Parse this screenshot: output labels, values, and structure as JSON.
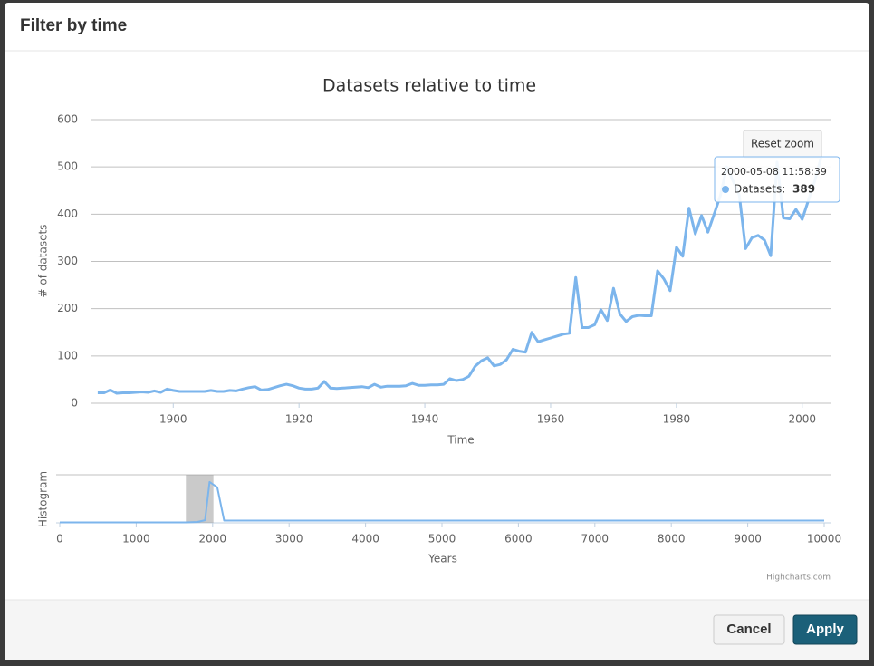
{
  "header": {
    "title": "Filter by time"
  },
  "chart_data": [
    {
      "type": "line",
      "title": "Datasets relative to time",
      "x_label": "Time",
      "y_label": "# of datasets",
      "x": [
        1888,
        1889,
        1890,
        1891,
        1892,
        1893,
        1894,
        1895,
        1896,
        1897,
        1898,
        1899,
        1900,
        1901,
        1902,
        1903,
        1904,
        1905,
        1906,
        1907,
        1908,
        1909,
        1910,
        1911,
        1912,
        1913,
        1914,
        1915,
        1916,
        1917,
        1918,
        1919,
        1920,
        1921,
        1922,
        1923,
        1924,
        1925,
        1926,
        1927,
        1928,
        1929,
        1930,
        1931,
        1932,
        1933,
        1934,
        1935,
        1936,
        1937,
        1938,
        1939,
        1940,
        1941,
        1942,
        1943,
        1944,
        1945,
        1946,
        1947,
        1948,
        1949,
        1950,
        1951,
        1952,
        1953,
        1954,
        1955,
        1956,
        1957,
        1958,
        1959,
        1960,
        1961,
        1962,
        1963,
        1964,
        1965,
        1966,
        1967,
        1968,
        1969,
        1970,
        1971,
        1972,
        1973,
        1974,
        1975,
        1976,
        1977,
        1978,
        1979,
        1980,
        1981,
        1982,
        1983,
        1984,
        1985,
        1986,
        1987,
        1988,
        1989,
        1990,
        1991,
        1992,
        1993,
        1994,
        1995,
        1996,
        1997,
        1998,
        1999,
        2000,
        2001,
        2002,
        2003
      ],
      "series": [
        {
          "name": "Datasets",
          "color": "#7cb5ec",
          "values": [
            22,
            22,
            28,
            21,
            22,
            22,
            23,
            24,
            23,
            26,
            23,
            30,
            27,
            25,
            25,
            25,
            25,
            25,
            27,
            25,
            25,
            27,
            26,
            30,
            33,
            35,
            28,
            29,
            33,
            37,
            40,
            37,
            32,
            30,
            30,
            32,
            46,
            32,
            31,
            32,
            33,
            34,
            35,
            33,
            40,
            34,
            36,
            36,
            36,
            37,
            42,
            38,
            38,
            39,
            39,
            40,
            52,
            48,
            50,
            57,
            78,
            90,
            96,
            79,
            82,
            92,
            114,
            110,
            108,
            150,
            130,
            134,
            138,
            142,
            146,
            148,
            266,
            160,
            160,
            166,
            198,
            175,
            243,
            189,
            173,
            183,
            186,
            185,
            185,
            280,
            263,
            238,
            330,
            311,
            413,
            358,
            397,
            362,
            400,
            440,
            500,
            470,
            440,
            327,
            350,
            355,
            345,
            312,
            510,
            392,
            390,
            410,
            389,
            430,
            470,
            520
          ]
        }
      ],
      "xlim": [
        1887,
        2004.5
      ],
      "xticks": [
        1900,
        1920,
        1940,
        1960,
        1980,
        2000
      ],
      "ylim": [
        0,
        600
      ],
      "yticks": [
        0,
        100,
        200,
        300,
        400,
        500,
        600
      ],
      "grid": true,
      "reset_button": "Reset zoom",
      "tooltip": {
        "time": "2000-05-08 11:58:39",
        "label": "Datasets:",
        "value": 389
      }
    },
    {
      "type": "line",
      "y_label": "Histogram",
      "x_label": "Years",
      "x": [
        0,
        1650,
        1800,
        1900,
        1960,
        2060,
        2150,
        10000
      ],
      "series": [
        {
          "name": "Histogram",
          "color": "#7cb5ec",
          "values": [
            1,
            1,
            2,
            6,
            92,
            80,
            5,
            5
          ]
        }
      ],
      "xlim": [
        0,
        10000
      ],
      "xticks": [
        0,
        1000,
        2000,
        3000,
        4000,
        5000,
        6000,
        7000,
        8000,
        9000,
        10000
      ],
      "ylim": [
        0,
        100
      ],
      "selection": [
        1650,
        2010
      ],
      "credits": "Highcharts.com"
    }
  ],
  "buttons": {
    "cancel": "Cancel",
    "apply": "Apply"
  }
}
